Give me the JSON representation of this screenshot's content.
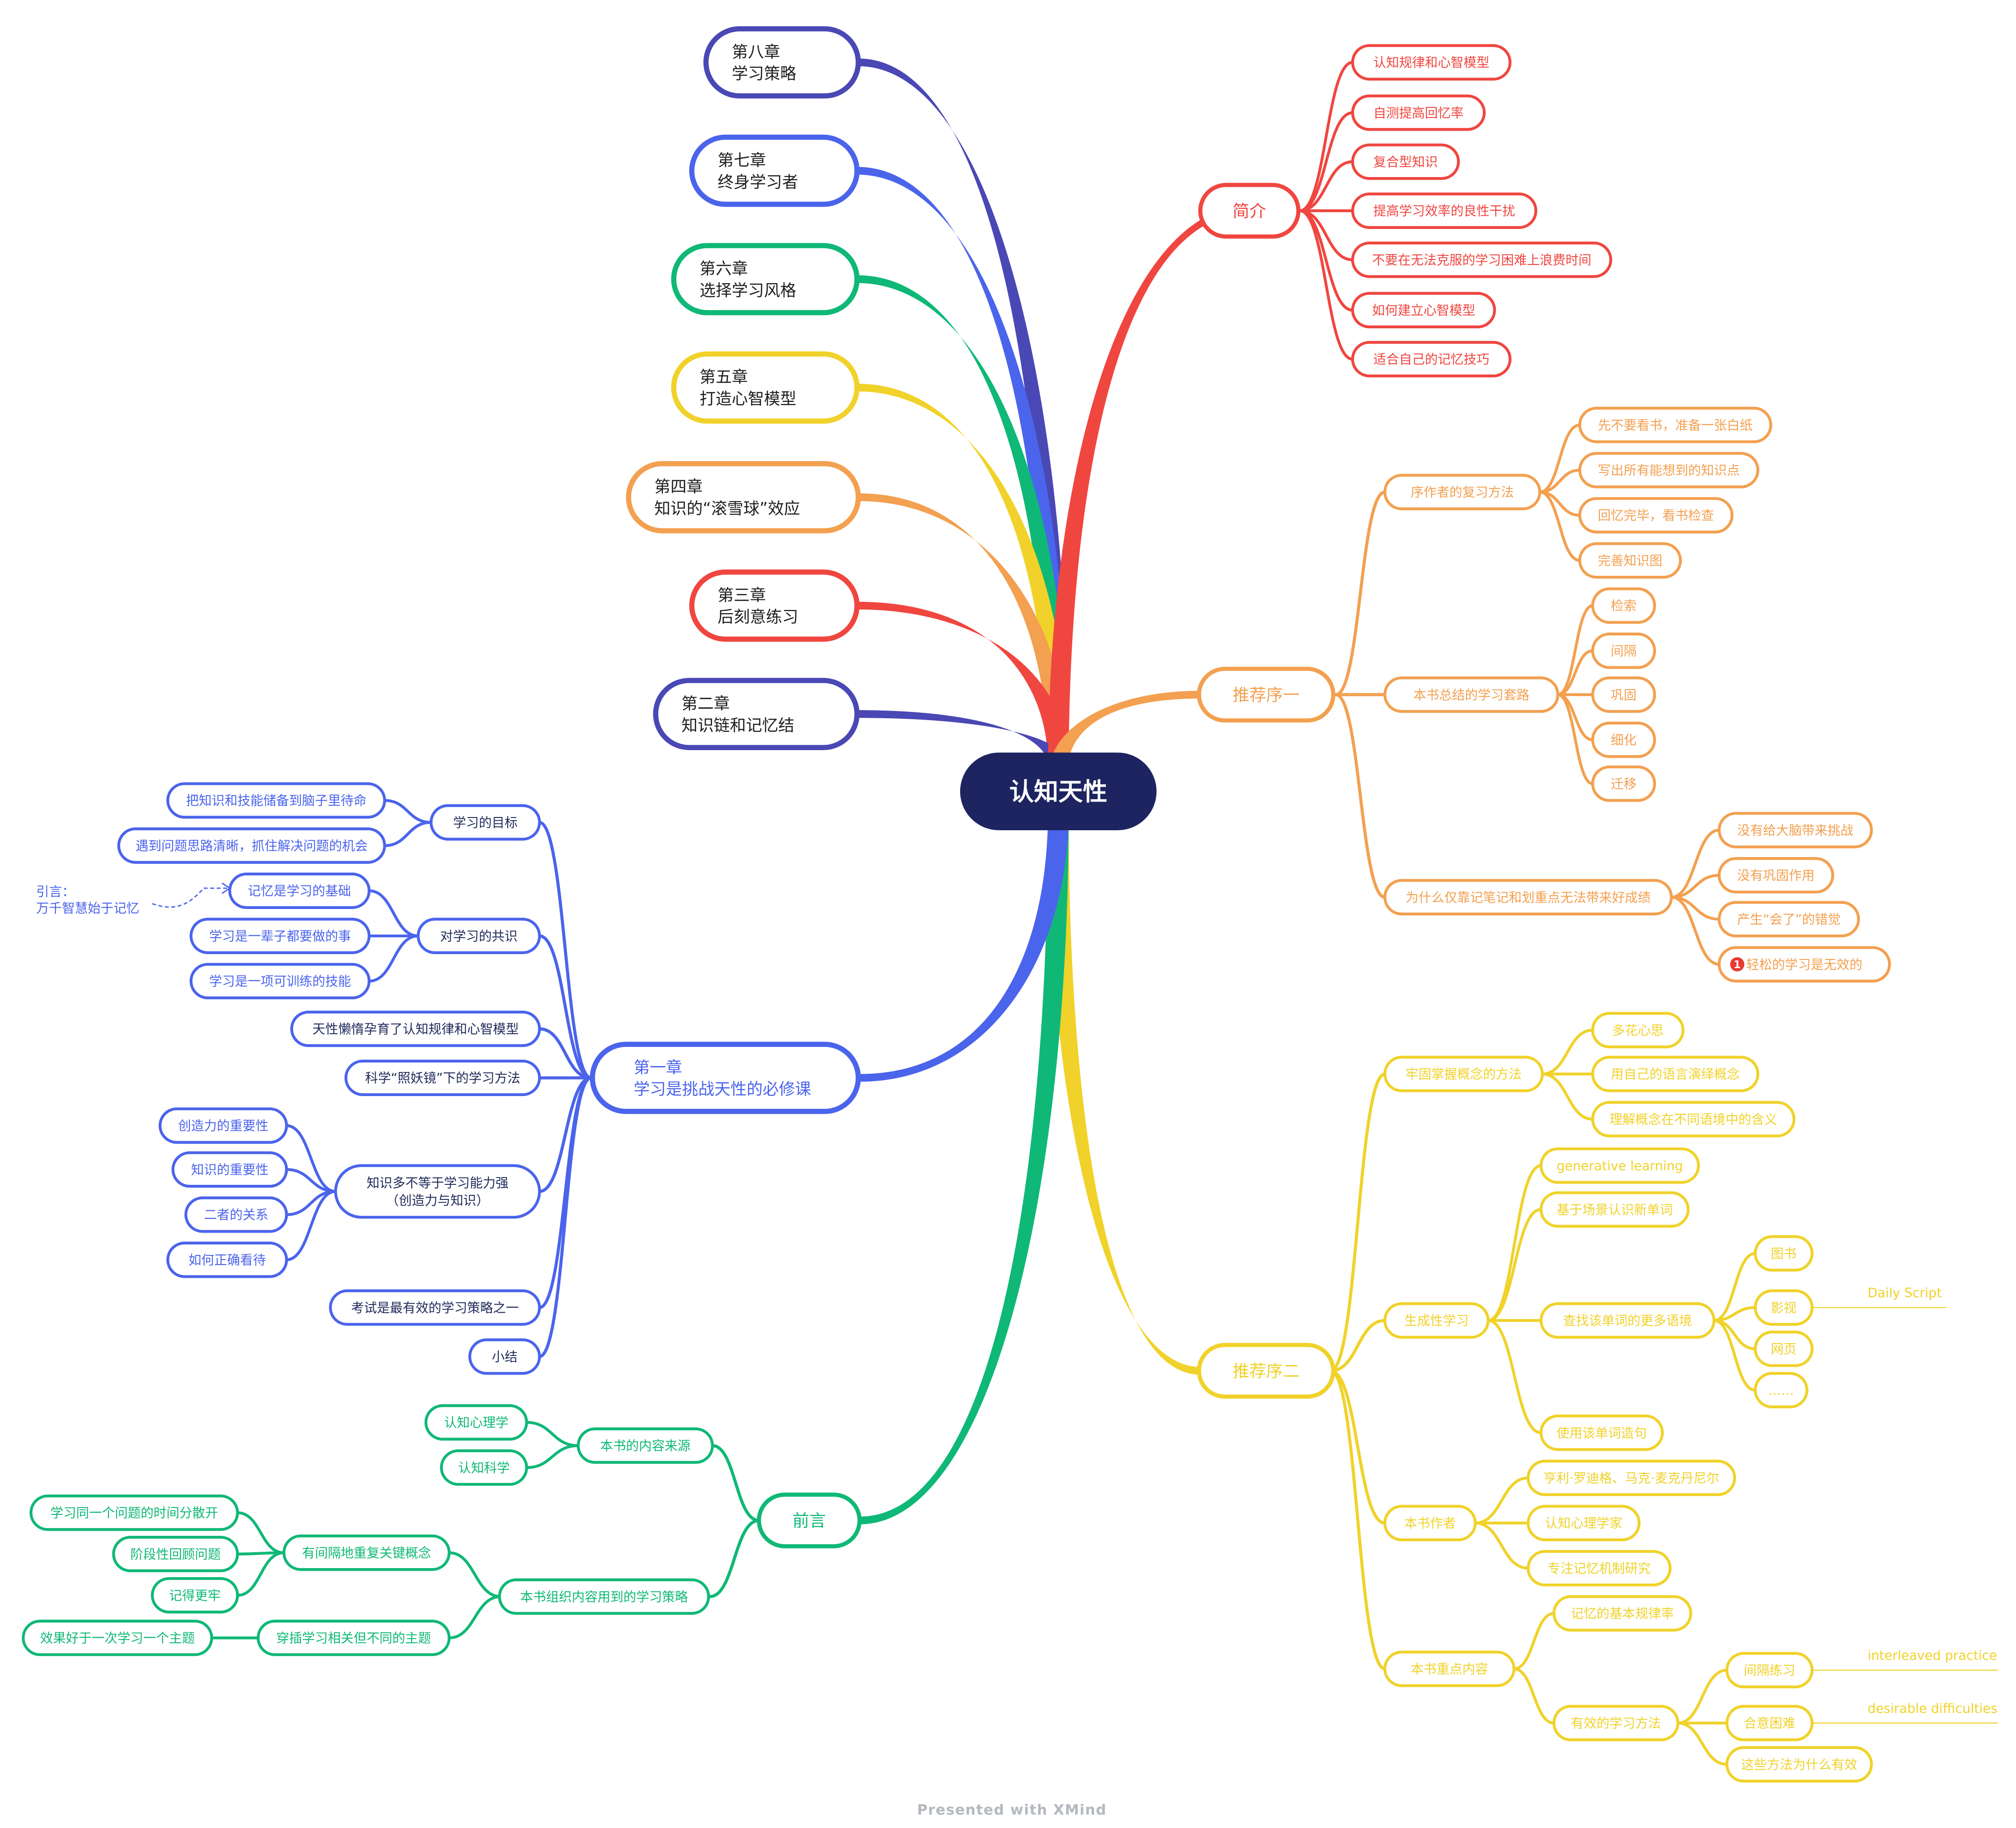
{
  "colors": {
    "center": "#1e2460",
    "red": "#f04640",
    "orange": "#f3a050",
    "yellow": "#f0d22a",
    "green": "#0fb876",
    "blue": "#4b64ec",
    "indigo": "#4a48b5",
    "credit": "#b4b8bf"
  },
  "center": "认知天性",
  "branches": [
    {
      "key": "jianjie",
      "label": "简介",
      "color": "red",
      "children": [
        "认知规律和心智模型",
        "自测提高回忆率",
        "复合型知识",
        "提高学习效率的良性干扰",
        "不要在无法克服的学习困难上浪费时间",
        "如何建立心智模型",
        "适合自己的记忆技巧"
      ]
    },
    {
      "key": "tuijianxu1",
      "label": "推荐序一",
      "color": "orange",
      "children": [
        {
          "label": "序作者的复习方法",
          "children": [
            "先不要看书，准备一张白纸",
            "写出所有能想到的知识点",
            "回忆完毕，看书检查",
            "完善知识图"
          ]
        },
        {
          "label": "本书总结的学习套路",
          "children": [
            "检索",
            "间隔",
            "巩固",
            "细化",
            "迁移"
          ]
        },
        {
          "label": "为什么仅靠记笔记和划重点无法带来好成绩",
          "children": [
            "没有给大脑带来挑战",
            "没有巩固作用",
            "产生“会了”的错觉",
            "轻松的学习是无效的"
          ],
          "marker": "1"
        }
      ]
    },
    {
      "key": "tuijianxu2",
      "label": "推荐序二",
      "color": "yellow",
      "children": [
        {
          "label": "牢固掌握概念的方法",
          "children": [
            "多花心思",
            "用自己的语言演绎概念",
            "理解概念在不同语境中的含义"
          ]
        },
        {
          "label": "生成性学习",
          "children": [
            "generative learning",
            "基于场景认识新单词",
            {
              "label": "查找该单词的更多语境",
              "children": [
                "图书",
                "影视",
                "网页",
                "……"
              ],
              "note": "Daily Script"
            },
            "使用该单词造句"
          ]
        },
        {
          "label": "本书作者",
          "children": [
            "亨利·罗迪格、马克·麦克丹尼尔",
            "认知心理学家",
            "专注记忆机制研究"
          ]
        },
        {
          "label": "本书重点内容",
          "children": [
            "记忆的基本规律率",
            {
              "label": "有效的学习方法",
              "children": [
                "间隔练习",
                "合意困难",
                "这些方法为什么有效"
              ],
              "notes": [
                "interleaved practice",
                "desirable difficulties"
              ]
            }
          ]
        }
      ]
    },
    {
      "key": "qianyan",
      "label": "前言",
      "color": "green",
      "children": [
        {
          "label": "本书的内容来源",
          "children": [
            "认知心理学",
            "认知科学"
          ]
        },
        {
          "label": "本书组织内容用到的学习策略",
          "children": [
            {
              "label": "有间隔地重复关键概念",
              "children": [
                "学习同一个问题的时间分散开",
                "阶段性回顾问题",
                "记得更牢"
              ]
            },
            {
              "label": "穿插学习相关但不同的主题",
              "children": [
                "效果好于一次学习一个主题"
              ]
            }
          ]
        }
      ]
    },
    {
      "key": "ch1",
      "label": "第一章\n学习是挑战天性的必修课",
      "color": "blue",
      "children": [
        {
          "label": "学习的目标",
          "children": [
            "把知识和技能储备到脑子里待命",
            "遇到问题思路清晰，抓住解决问题的机会"
          ]
        },
        {
          "label": "对学习的共识",
          "children": [
            "记忆是学习的基础",
            "学习是一辈子都要做的事",
            "学习是一项可训练的技能"
          ],
          "callout": "引言：\n万千智慧始于记忆"
        },
        "天性懒惰孕育了认知规律和心智模型",
        "科学“照妖镜”下的学习方法",
        {
          "label": "知识多不等于学习能力强\n（创造力与知识）",
          "children": [
            "创造力的重要性",
            "知识的重要性",
            "二者的关系",
            "如何正确看待"
          ]
        },
        "考试是最有效的学习策略之一",
        "小结"
      ]
    },
    {
      "key": "ch2",
      "label": "第二章\n知识链和记忆结",
      "color": "indigo"
    },
    {
      "key": "ch3",
      "label": "第三章\n后刻意练习",
      "color": "red"
    },
    {
      "key": "ch4",
      "label": "第四章\n知识的“滚雪球”效应",
      "color": "orange"
    },
    {
      "key": "ch5",
      "label": "第五章\n打造心智模型",
      "color": "yellow"
    },
    {
      "key": "ch6",
      "label": "第六章\n选择学习风格",
      "color": "green"
    },
    {
      "key": "ch7",
      "label": "第七章\n终身学习者",
      "color": "blue"
    },
    {
      "key": "ch8",
      "label": "第八章\n学习策略",
      "color": "indigo"
    }
  ],
  "footer": "Presented with XMind"
}
